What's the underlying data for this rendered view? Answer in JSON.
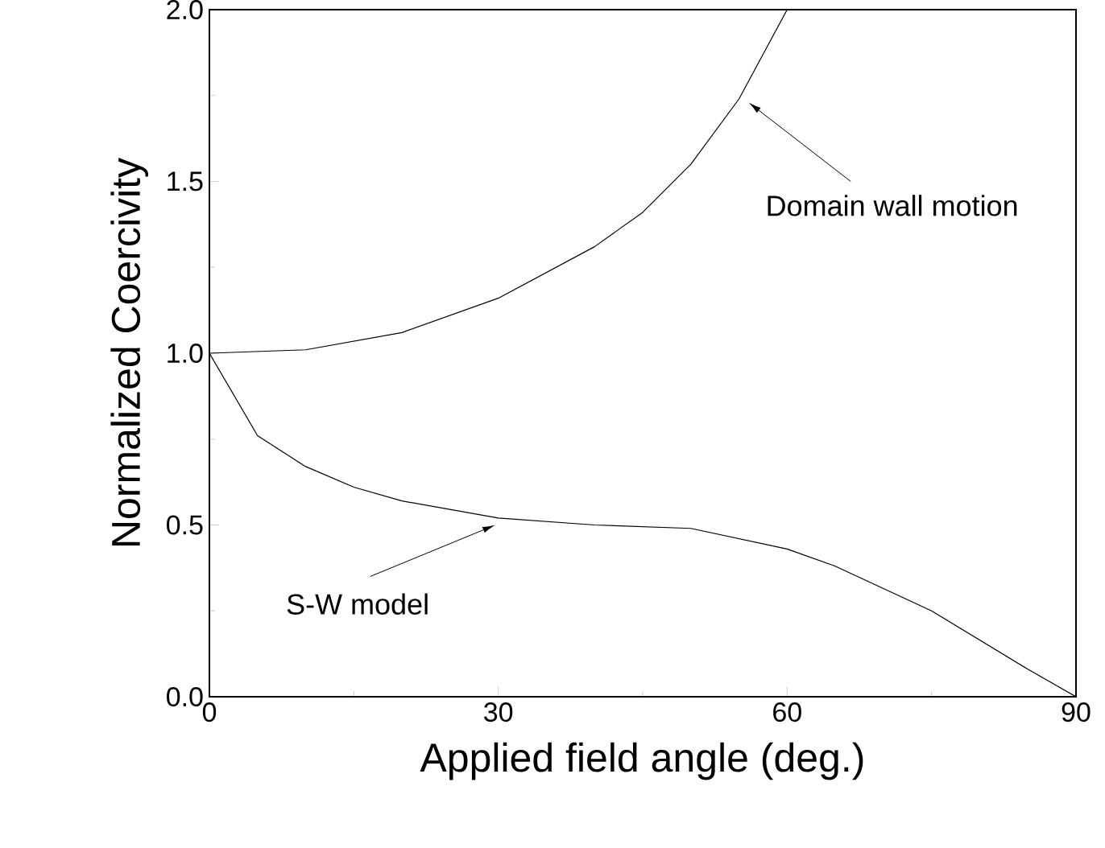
{
  "chart_data": {
    "type": "line",
    "xlabel": "Applied field angle (deg.)",
    "ylabel": "Normalized Coercivity",
    "xlim": [
      0,
      90
    ],
    "ylim": [
      0,
      2.0
    ],
    "xticks": [
      0,
      30,
      60,
      90
    ],
    "yticks": [
      {
        "value": 0,
        "label": "0.0"
      },
      {
        "value": 0.5,
        "label": "0.5"
      },
      {
        "value": 1.0,
        "label": "1.0"
      },
      {
        "value": 1.5,
        "label": "1.5"
      },
      {
        "value": 2.0,
        "label": "2.0"
      }
    ],
    "grid": false,
    "marker": "none",
    "line_style": "solid",
    "series": [
      {
        "color": "#000000",
        "x": [
          0,
          10,
          20,
          30,
          40,
          45,
          50,
          55,
          60
        ],
        "values": [
          1.0,
          1.01,
          1.06,
          1.16,
          1.31,
          1.41,
          1.55,
          1.74,
          2.0
        ]
      },
      {
        "color": "#000000",
        "x": [
          0,
          5,
          10,
          15,
          20,
          30,
          40,
          50,
          60,
          65,
          75,
          85,
          90
        ],
        "values": [
          1.0,
          0.76,
          0.67,
          0.61,
          0.57,
          0.52,
          0.5,
          0.49,
          0.43,
          0.38,
          0.25,
          0.08,
          0.0
        ]
      }
    ],
    "annotations": [
      "Domain wall motion",
      "S-W model"
    ]
  }
}
